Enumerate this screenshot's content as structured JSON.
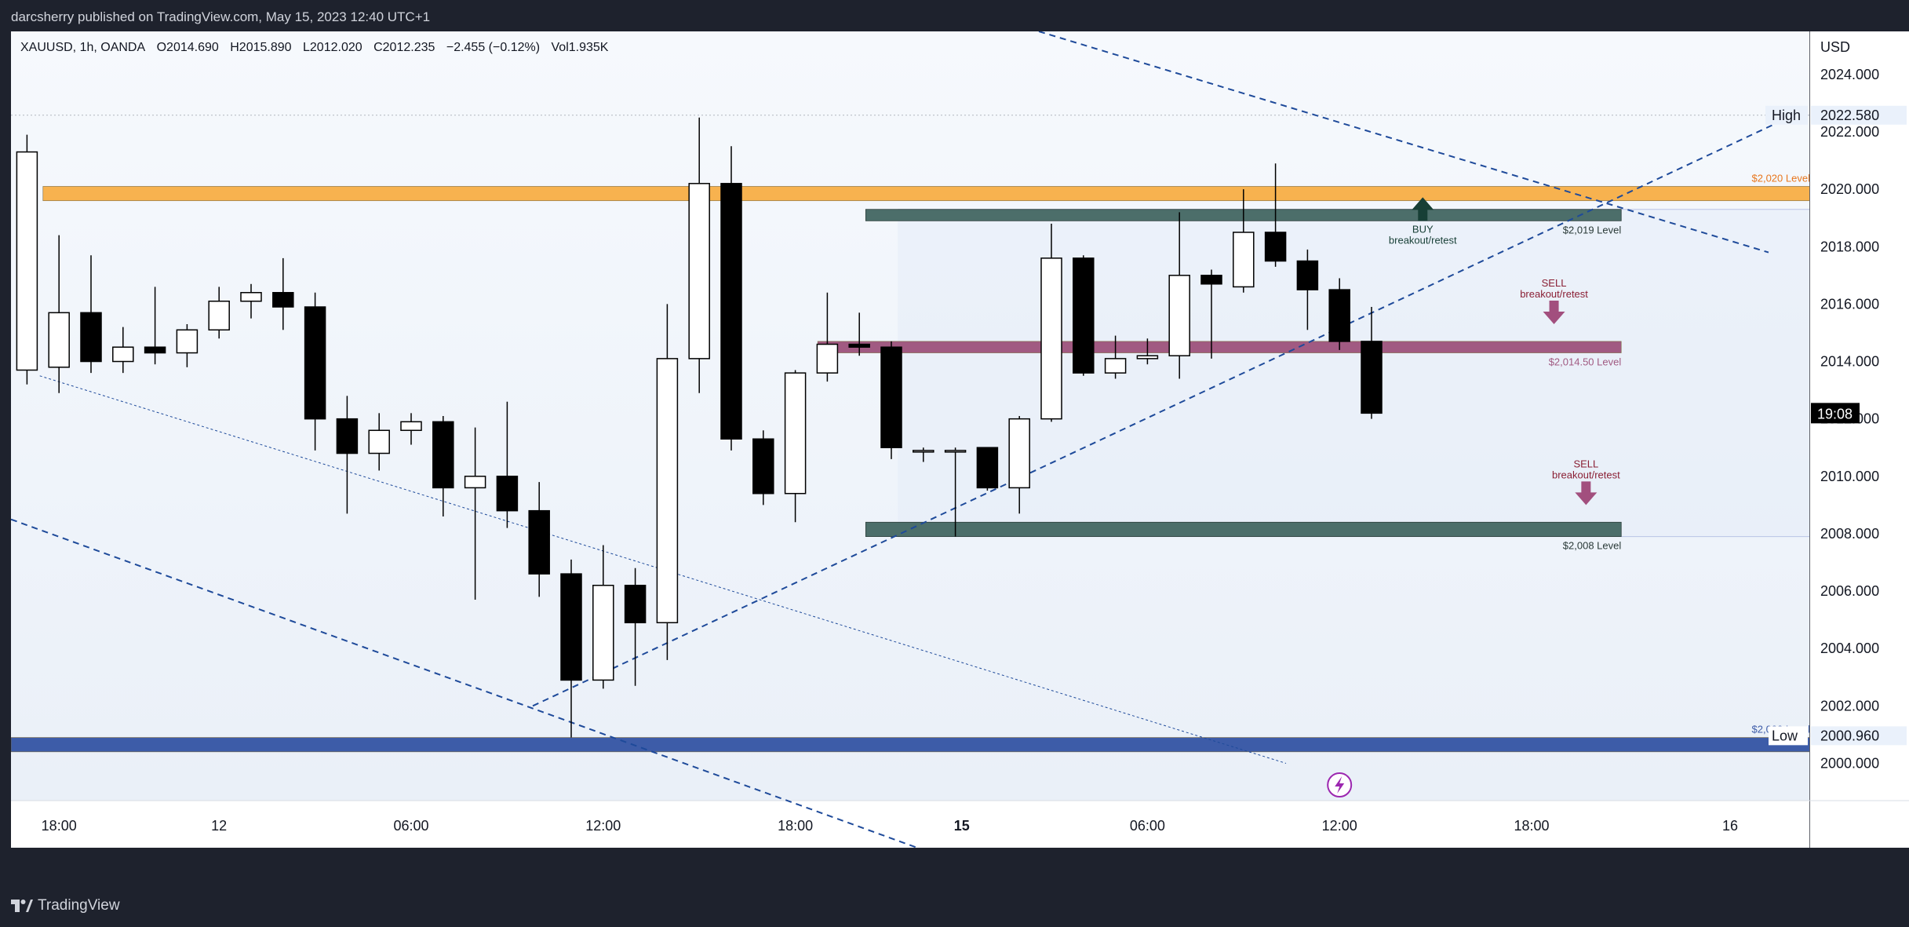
{
  "header": {
    "publisher": "darcsherry published on TradingView.com, May 15, 2023 12:40 UTC+1"
  },
  "symbol_line": {
    "symbol": "XAUUSD, 1h, OANDA",
    "open": "O2014.690",
    "high": "H2015.890",
    "low": "L2012.020",
    "close": "C2012.235",
    "change": "−2.455 (−0.12%)",
    "volume": "Vol1.935K"
  },
  "footer": {
    "brand": "TradingView"
  },
  "colors": {
    "up_candle": "#ffffff",
    "down_candle": "#000000",
    "level_2020": "#f7b24f",
    "level_2014_5": "#a15a82",
    "level_2000": "#3d5ca8",
    "zone_green": "#4c6e6a",
    "trendline": "#1e4a9a",
    "background_tint": "#eaf0f8"
  },
  "chart_data": {
    "type": "candlestick",
    "currency": "USD",
    "y_ticks": [
      "2000.000",
      "2002.000",
      "2004.000",
      "2006.000",
      "2008.000",
      "2010.000",
      "2012.000",
      "2014.000",
      "2016.000",
      "2018.000",
      "2020.000",
      "2022.000",
      "2024.000"
    ],
    "ylim": [
      1998.7,
      2025.5
    ],
    "x_ticks": [
      {
        "label": "18:00",
        "index": 1
      },
      {
        "label": "12",
        "index": 6
      },
      {
        "label": "06:00",
        "index": 12
      },
      {
        "label": "12:00",
        "index": 18
      },
      {
        "label": "18:00",
        "index": 24
      },
      {
        "label": "15",
        "index": 29.2
      },
      {
        "label": "06:00",
        "index": 35
      },
      {
        "label": "12:00",
        "index": 41
      },
      {
        "label": "18:00",
        "index": 47
      },
      {
        "label": "16",
        "index": 53.2
      }
    ],
    "candles": [
      {
        "o": 2013.7,
        "h": 2021.9,
        "l": 2013.2,
        "c": 2021.3
      },
      {
        "o": 2013.8,
        "h": 2018.4,
        "l": 2012.9,
        "c": 2015.7
      },
      {
        "o": 2015.7,
        "h": 2017.7,
        "l": 2013.6,
        "c": 2014.0
      },
      {
        "o": 2014.0,
        "h": 2015.2,
        "l": 2013.6,
        "c": 2014.5
      },
      {
        "o": 2014.5,
        "h": 2016.6,
        "l": 2013.9,
        "c": 2014.3
      },
      {
        "o": 2014.3,
        "h": 2015.3,
        "l": 2013.8,
        "c": 2015.1
      },
      {
        "o": 2015.1,
        "h": 2016.6,
        "l": 2014.8,
        "c": 2016.1
      },
      {
        "o": 2016.1,
        "h": 2016.7,
        "l": 2015.5,
        "c": 2016.4
      },
      {
        "o": 2016.4,
        "h": 2017.6,
        "l": 2015.1,
        "c": 2015.9
      },
      {
        "o": 2015.9,
        "h": 2016.4,
        "l": 2010.9,
        "c": 2012.0
      },
      {
        "o": 2012.0,
        "h": 2012.8,
        "l": 2008.7,
        "c": 2010.8
      },
      {
        "o": 2010.8,
        "h": 2012.2,
        "l": 2010.2,
        "c": 2011.6
      },
      {
        "o": 2011.6,
        "h": 2012.2,
        "l": 2011.1,
        "c": 2011.9
      },
      {
        "o": 2011.9,
        "h": 2012.1,
        "l": 2008.6,
        "c": 2009.6
      },
      {
        "o": 2009.6,
        "h": 2011.7,
        "l": 2005.7,
        "c": 2010.0
      },
      {
        "o": 2010.0,
        "h": 2012.6,
        "l": 2008.2,
        "c": 2008.8
      },
      {
        "o": 2008.8,
        "h": 2009.8,
        "l": 2005.8,
        "c": 2006.6
      },
      {
        "o": 2006.6,
        "h": 2007.1,
        "l": 2000.9,
        "c": 2002.9
      },
      {
        "o": 2002.9,
        "h": 2007.6,
        "l": 2002.6,
        "c": 2006.2
      },
      {
        "o": 2006.2,
        "h": 2006.8,
        "l": 2002.7,
        "c": 2004.9
      },
      {
        "o": 2004.9,
        "h": 2016.0,
        "l": 2003.6,
        "c": 2014.1
      },
      {
        "o": 2014.1,
        "h": 2022.5,
        "l": 2012.9,
        "c": 2020.2
      },
      {
        "o": 2020.2,
        "h": 2021.5,
        "l": 2010.9,
        "c": 2011.3
      },
      {
        "o": 2011.3,
        "h": 2011.6,
        "l": 2009.0,
        "c": 2009.4
      },
      {
        "o": 2009.4,
        "h": 2013.7,
        "l": 2008.4,
        "c": 2013.6
      },
      {
        "o": 2013.6,
        "h": 2016.4,
        "l": 2013.3,
        "c": 2014.6
      },
      {
        "o": 2014.6,
        "h": 2015.7,
        "l": 2014.2,
        "c": 2014.5
      },
      {
        "o": 2014.5,
        "h": 2014.7,
        "l": 2010.6,
        "c": 2011.0
      },
      {
        "o": 2010.9,
        "h": 2011.0,
        "l": 2010.5,
        "c": 2010.9
      },
      {
        "o": 2010.9,
        "h": 2011.0,
        "l": 2007.9,
        "c": 2010.9
      },
      {
        "o": 2011.0,
        "h": 2011.0,
        "l": 2009.5,
        "c": 2009.6
      },
      {
        "o": 2009.6,
        "h": 2012.1,
        "l": 2008.7,
        "c": 2012.0
      },
      {
        "o": 2012.0,
        "h": 2018.8,
        "l": 2011.9,
        "c": 2017.6
      },
      {
        "o": 2017.6,
        "h": 2017.7,
        "l": 2013.5,
        "c": 2013.6
      },
      {
        "o": 2013.6,
        "h": 2014.9,
        "l": 2013.4,
        "c": 2014.1
      },
      {
        "o": 2014.1,
        "h": 2014.8,
        "l": 2013.9,
        "c": 2014.2
      },
      {
        "o": 2014.2,
        "h": 2019.2,
        "l": 2013.4,
        "c": 2017.0
      },
      {
        "o": 2017.0,
        "h": 2017.2,
        "l": 2014.1,
        "c": 2016.7
      },
      {
        "o": 2016.6,
        "h": 2020.0,
        "l": 2016.4,
        "c": 2018.5
      },
      {
        "o": 2018.5,
        "h": 2020.9,
        "l": 2017.3,
        "c": 2017.5
      },
      {
        "o": 2017.5,
        "h": 2017.9,
        "l": 2015.1,
        "c": 2016.5
      },
      {
        "o": 2016.5,
        "h": 2016.9,
        "l": 2014.4,
        "c": 2014.7
      },
      {
        "o": 2014.7,
        "h": 2015.9,
        "l": 2012.0,
        "c": 2012.2
      }
    ],
    "levels": [
      {
        "name": "$2,020 Level",
        "value": 2020.0,
        "band": [
          2019.6,
          2020.1
        ]
      },
      {
        "name": "$2,014.50 Level",
        "value": 2014.5,
        "band": [
          2014.3,
          2014.7
        ]
      },
      {
        "name": "$2,000 Level",
        "value": 2000.5,
        "band": [
          2000.4,
          2000.9
        ]
      }
    ],
    "zones": [
      {
        "name": "$2,019 Level",
        "band": [
          2018.9,
          2019.3
        ]
      },
      {
        "name": "$2,008 Level",
        "band": [
          2007.9,
          2008.4
        ]
      }
    ],
    "annotations": [
      {
        "type": "arrow-up",
        "lines": [
          "BUY",
          "breakout/retest"
        ]
      },
      {
        "type": "arrow-down",
        "lines": [
          "SELL",
          "breakout/retest"
        ]
      },
      {
        "type": "arrow-down",
        "lines": [
          "SELL",
          "breakout/retest"
        ]
      }
    ],
    "high_label": {
      "text": "High",
      "value": "2022.580"
    },
    "low_label": {
      "text": "Low",
      "value": "2000.960"
    },
    "countdown": "19:08"
  }
}
